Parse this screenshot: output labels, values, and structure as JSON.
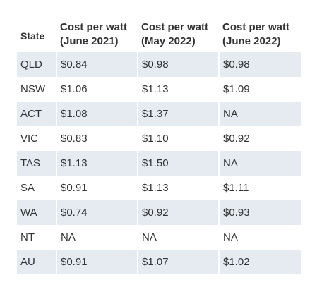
{
  "table": {
    "headers": [
      "State",
      "Cost per watt (June 2021)",
      "Cost per watt (May 2022)",
      "Cost per watt (June 2022)"
    ],
    "rows": [
      [
        "QLD",
        "$0.84",
        "$0.98",
        "$0.98"
      ],
      [
        "NSW",
        "$1.06",
        "$1.13",
        "$1.09"
      ],
      [
        "ACT",
        "$1.08",
        "$1.37",
        "NA"
      ],
      [
        "VIC",
        "$0.83",
        "$1.10",
        "$0.92"
      ],
      [
        "TAS",
        "$1.13",
        "$1.50",
        "NA"
      ],
      [
        "SA",
        "$0.91",
        "$1.13",
        "$1.11"
      ],
      [
        "WA",
        "$0.74",
        "$0.92",
        "$0.93"
      ],
      [
        "NT",
        "NA",
        "NA",
        "NA"
      ],
      [
        "AU",
        "$0.91",
        "$1.07",
        "$1.02"
      ]
    ]
  },
  "colors": {
    "shaded_row": "#e6ebf2",
    "text": "#333333"
  }
}
